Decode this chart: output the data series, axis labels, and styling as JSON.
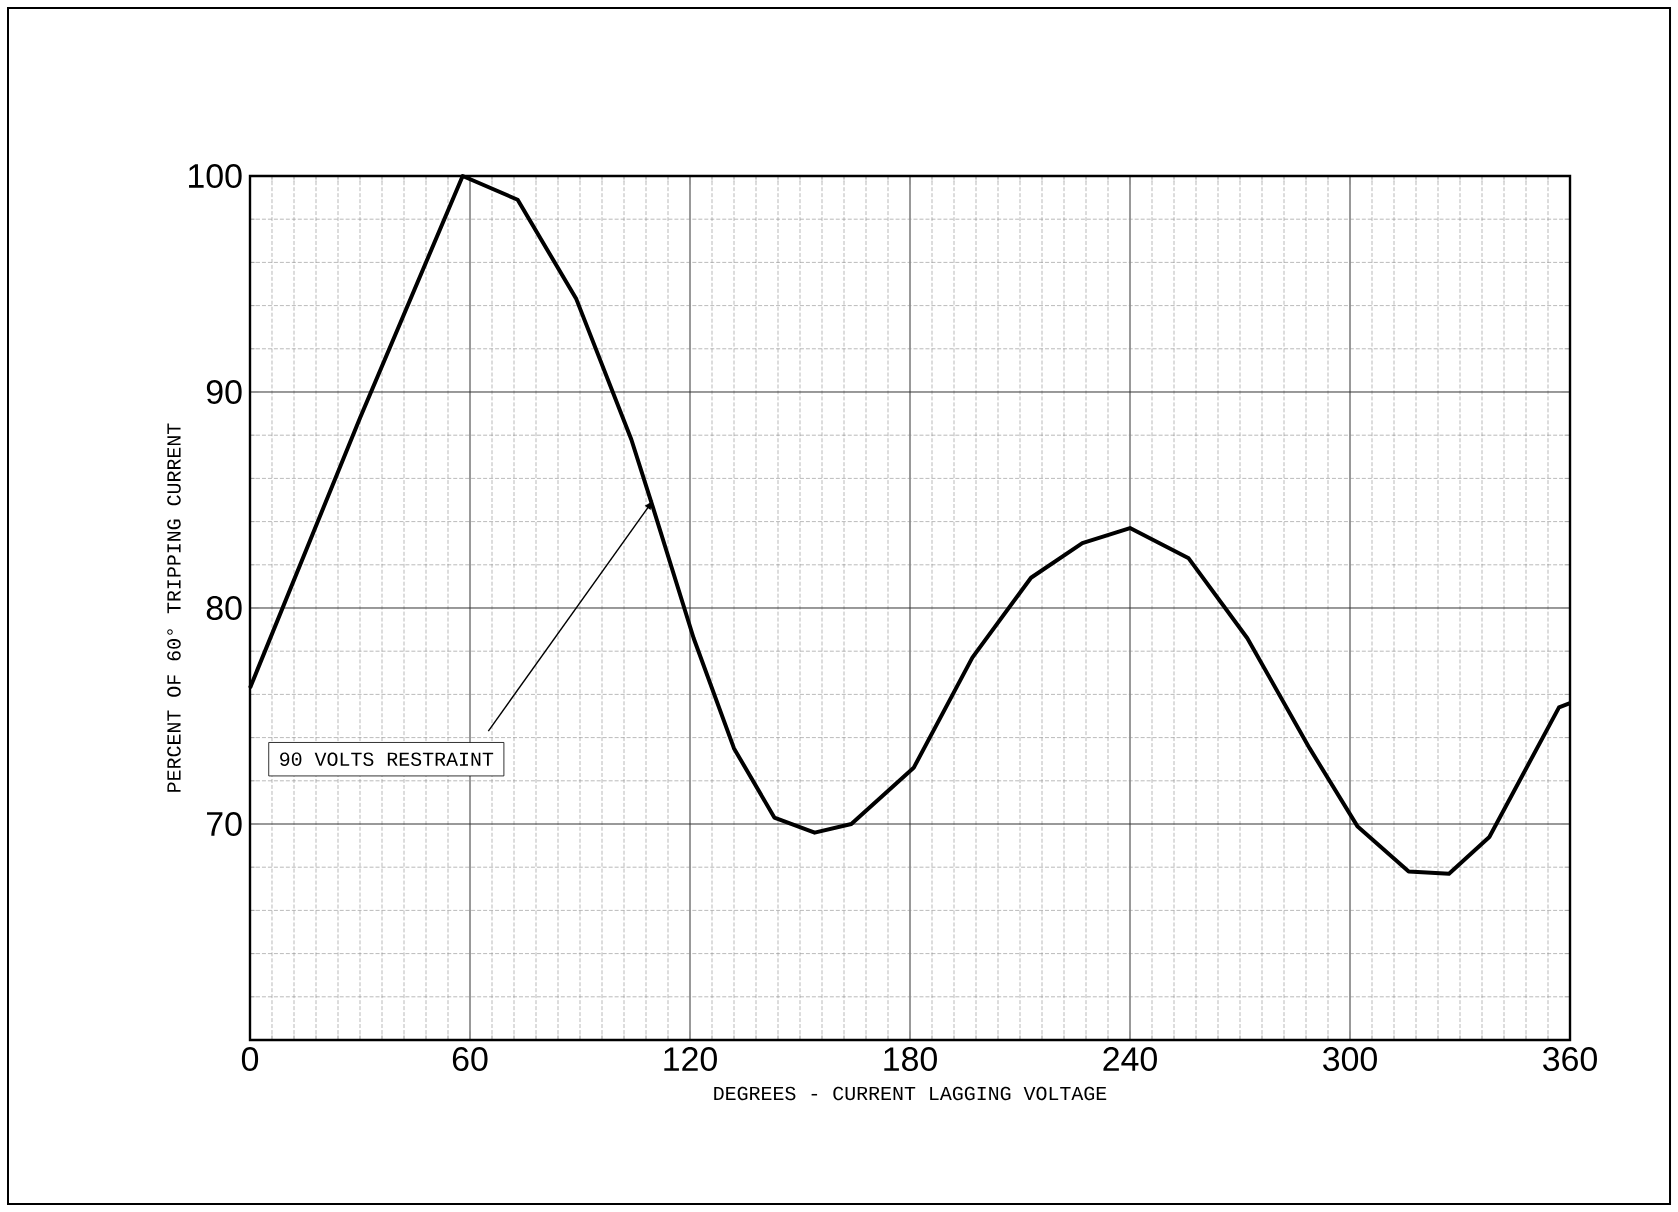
{
  "chart_data": {
    "type": "line",
    "xlabel": "DEGREES - CURRENT LAGGING VOLTAGE",
    "ylabel": "PERCENT OF 60° TRIPPING CURRENT",
    "x": [
      0,
      30,
      58,
      73,
      89,
      104,
      110,
      121,
      132,
      143,
      154,
      164,
      181,
      197,
      213,
      227,
      240,
      256,
      272,
      289,
      302,
      316,
      327,
      338,
      357,
      360
    ],
    "values": [
      76.3,
      88.8,
      100,
      98.9,
      94.3,
      87.8,
      84.6,
      78.6,
      73.5,
      70.3,
      69.6,
      70.0,
      72.6,
      77.7,
      81.4,
      83.0,
      83.7,
      82.3,
      78.6,
      73.5,
      69.9,
      67.8,
      67.7,
      69.4,
      75.4,
      75.6
    ],
    "color": "#000000",
    "xlim": [
      0,
      360
    ],
    "xticks": [
      0,
      60,
      120,
      180,
      240,
      300,
      360
    ],
    "ylim": [
      60,
      100
    ],
    "yticks": [
      {
        "value": 60,
        "label": null
      },
      70,
      80,
      90,
      100
    ],
    "grid": true,
    "marker": "none",
    "line_style": "solid",
    "annotations": [
      {
        "text": "90 VOLTS RESTRAINT",
        "x": 110,
        "y": 85
      }
    ]
  }
}
